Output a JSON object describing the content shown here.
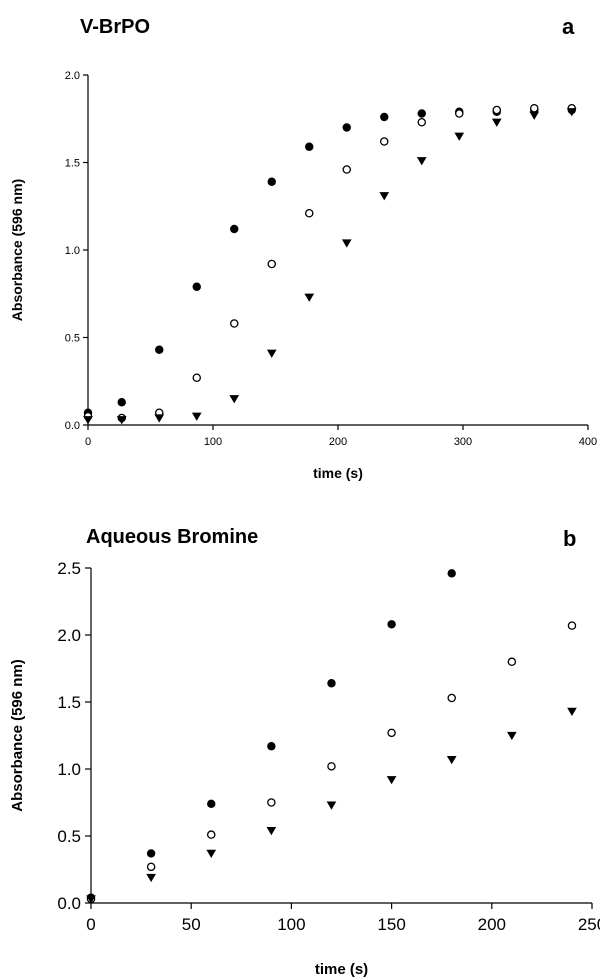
{
  "chart_data": [
    {
      "type": "scatter",
      "id": "a",
      "title": "V-BrPO",
      "panel_letter": "a",
      "xlabel": "time (s)",
      "ylabel": "Absorbance (596 nm)",
      "xlim": [
        0,
        400
      ],
      "ylim": [
        0,
        2.0
      ],
      "xticks": [
        0,
        100,
        200,
        300,
        400
      ],
      "yticks": [
        0.0,
        0.5,
        1.0,
        1.5,
        2.0
      ],
      "ytick_labels": [
        "0.0",
        "0.5",
        "1.0",
        "1.5",
        "2.0"
      ],
      "grid": false,
      "series": [
        {
          "marker": "filled-circle",
          "x": [
            0,
            27,
            57,
            87,
            117,
            147,
            177,
            207,
            237,
            267,
            297,
            327,
            357,
            387
          ],
          "y": [
            0.07,
            0.13,
            0.43,
            0.79,
            1.12,
            1.39,
            1.59,
            1.7,
            1.76,
            1.78,
            1.79,
            1.79,
            1.8,
            1.8
          ]
        },
        {
          "marker": "open-circle",
          "x": [
            0,
            27,
            57,
            87,
            117,
            147,
            177,
            207,
            237,
            267,
            297,
            327,
            357,
            387
          ],
          "y": [
            0.05,
            0.04,
            0.07,
            0.27,
            0.58,
            0.92,
            1.21,
            1.46,
            1.62,
            1.73,
            1.78,
            1.8,
            1.81,
            1.81
          ]
        },
        {
          "marker": "filled-triangle-down",
          "x": [
            0,
            27,
            57,
            87,
            117,
            147,
            177,
            207,
            237,
            267,
            297,
            327,
            357,
            387
          ],
          "y": [
            0.03,
            0.03,
            0.04,
            0.05,
            0.15,
            0.41,
            0.73,
            1.04,
            1.31,
            1.51,
            1.65,
            1.73,
            1.77,
            1.79
          ]
        }
      ]
    },
    {
      "type": "scatter",
      "id": "b",
      "title": "Aqueous Bromine",
      "panel_letter": "b",
      "xlabel": "time (s)",
      "ylabel": "Absorbance (596 nm)",
      "xlim": [
        0,
        250
      ],
      "ylim": [
        0,
        2.5
      ],
      "xticks": [
        0,
        50,
        100,
        150,
        200,
        250
      ],
      "yticks": [
        0.0,
        0.5,
        1.0,
        1.5,
        2.0,
        2.5
      ],
      "ytick_labels": [
        "0.0",
        "0.5",
        "1.0",
        "1.5",
        "2.0",
        "2.5"
      ],
      "grid": false,
      "series": [
        {
          "marker": "filled-circle",
          "x": [
            0,
            30,
            60,
            90,
            120,
            150,
            180
          ],
          "y": [
            0.04,
            0.37,
            0.74,
            1.17,
            1.64,
            2.08,
            2.46
          ]
        },
        {
          "marker": "open-circle",
          "x": [
            0,
            30,
            60,
            90,
            120,
            150,
            180,
            210,
            240
          ],
          "y": [
            0.03,
            0.27,
            0.51,
            0.75,
            1.02,
            1.27,
            1.53,
            1.8,
            2.07
          ]
        },
        {
          "marker": "filled-triangle-down",
          "x": [
            0,
            30,
            60,
            90,
            120,
            150,
            180,
            210,
            240
          ],
          "y": [
            0.03,
            0.19,
            0.37,
            0.54,
            0.73,
            0.92,
            1.07,
            1.25,
            1.43
          ]
        }
      ]
    }
  ]
}
